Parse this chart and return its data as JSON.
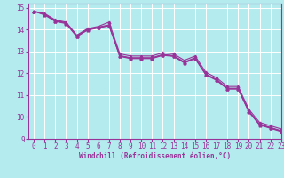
{
  "xlabel": "Windchill (Refroidissement éolien,°C)",
  "background_color": "#b3ebee",
  "line_color": "#993399",
  "grid_color": "#ffffff",
  "xlim": [
    -0.5,
    23
  ],
  "ylim": [
    9,
    15.2
  ],
  "yticks": [
    9,
    10,
    11,
    12,
    13,
    14,
    15
  ],
  "xticks": [
    0,
    1,
    2,
    3,
    4,
    5,
    6,
    7,
    8,
    9,
    10,
    11,
    12,
    13,
    14,
    15,
    16,
    17,
    18,
    19,
    20,
    21,
    22,
    23
  ],
  "series_upper": [
    14.85,
    14.75,
    14.45,
    14.35,
    13.75,
    14.05,
    14.15,
    14.35,
    12.9,
    12.8,
    12.8,
    12.8,
    12.95,
    12.9,
    12.6,
    12.8,
    12.05,
    11.8,
    11.4,
    11.4,
    10.35,
    9.75,
    9.6,
    9.45
  ],
  "series_mid1": [
    14.85,
    14.72,
    14.42,
    14.32,
    13.72,
    14.02,
    14.12,
    14.22,
    12.82,
    12.72,
    12.72,
    12.72,
    12.87,
    12.82,
    12.52,
    12.72,
    11.97,
    11.72,
    11.32,
    11.32,
    10.27,
    9.67,
    9.52,
    9.37
  ],
  "series_mid2": [
    14.85,
    14.7,
    14.4,
    14.3,
    13.7,
    14.0,
    14.1,
    14.2,
    12.8,
    12.7,
    12.7,
    12.7,
    12.85,
    12.8,
    12.5,
    12.7,
    11.95,
    11.7,
    11.3,
    11.3,
    10.25,
    9.65,
    9.5,
    9.35
  ],
  "series_lower": [
    14.85,
    14.68,
    14.38,
    14.28,
    13.68,
    13.98,
    14.08,
    14.18,
    12.78,
    12.68,
    12.68,
    12.68,
    12.83,
    12.78,
    12.48,
    12.68,
    11.93,
    11.68,
    11.28,
    11.28,
    10.23,
    9.63,
    9.48,
    9.33
  ],
  "x_values": [
    0,
    1,
    2,
    3,
    4,
    5,
    6,
    7,
    8,
    9,
    10,
    11,
    12,
    13,
    14,
    15,
    16,
    17,
    18,
    19,
    20,
    21,
    22,
    23
  ],
  "xlabel_fontsize": 5.5,
  "tick_fontsize": 5.5
}
